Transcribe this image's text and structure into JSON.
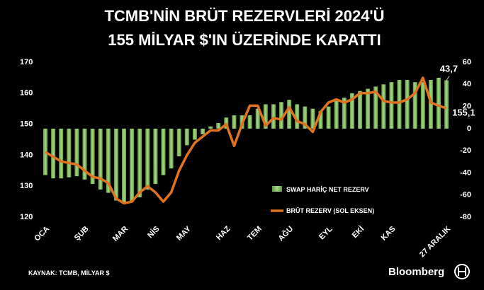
{
  "chart_data": {
    "type": "bar-line",
    "title": [
      "TCMB'NİN BRÜT REZERVLERİ 2024'Ü",
      "155 MİLYAR $'IN ÜZERİNDE KAPATTI"
    ],
    "source": "KAYNAK: TCMB, MİLYAR $",
    "brand": "Bloomberg",
    "categories": [
      "OCA",
      null,
      null,
      null,
      null,
      "ŞUB",
      null,
      null,
      null,
      null,
      "MAR",
      null,
      null,
      null,
      "NİS",
      null,
      null,
      null,
      "MAY",
      null,
      null,
      null,
      null,
      "HAZ",
      null,
      null,
      null,
      "TEM",
      null,
      null,
      null,
      "AĞU",
      null,
      null,
      null,
      null,
      "EYL",
      null,
      null,
      null,
      "EKİ",
      null,
      null,
      null,
      "KAS",
      null,
      null,
      null,
      null,
      null,
      null,
      "27 ARALIK"
    ],
    "series": [
      {
        "name": "SWAP HARİÇ NET REZERV",
        "color": "#5f9e3c",
        "axis": "y2",
        "values": [
          -42,
          -45,
          -45,
          -44,
          -43,
          -46,
          -50,
          -55,
          -58,
          -65,
          -68,
          -66,
          -62,
          -55,
          -50,
          -42,
          -36,
          -25,
          -15,
          -10,
          -5,
          2,
          5,
          10,
          12,
          12,
          12,
          18,
          22,
          22,
          24,
          26,
          22,
          20,
          18,
          16,
          20,
          25,
          28,
          32,
          34,
          36,
          38,
          40,
          42,
          44,
          44,
          42,
          42,
          44,
          46,
          43.7
        ],
        "value_labels": [
          null,
          null,
          null,
          null,
          null,
          null,
          null,
          null,
          null,
          null,
          null,
          null,
          null,
          null,
          null,
          null,
          null,
          null,
          null,
          null,
          null,
          null,
          null,
          null,
          null,
          null,
          null,
          null,
          null,
          null,
          null,
          null,
          null,
          null,
          null,
          null,
          null,
          null,
          null,
          null,
          null,
          null,
          null,
          null,
          null,
          null,
          null,
          null,
          null,
          null,
          null,
          "43,7"
        ]
      },
      {
        "name": "BRÜT REZERV (SOL EKSEN)",
        "color": "#e0731f",
        "axis": "y",
        "values": [
          141,
          139.5,
          138,
          137.5,
          137,
          135,
          133,
          132.5,
          131,
          126,
          124.5,
          125,
          128,
          130,
          128,
          125,
          128,
          135,
          140,
          144,
          146,
          148,
          148,
          150,
          143,
          150,
          156,
          156,
          149.5,
          152,
          151.5,
          155.5,
          151,
          150,
          147.5,
          154,
          157,
          158,
          157,
          158,
          160,
          160,
          160.5,
          157.5,
          157,
          157,
          158,
          160,
          165,
          157,
          156,
          155.1
        ],
        "value_labels": [
          null,
          null,
          null,
          null,
          null,
          null,
          null,
          null,
          null,
          null,
          null,
          null,
          null,
          null,
          null,
          null,
          null,
          null,
          null,
          null,
          null,
          null,
          null,
          null,
          null,
          null,
          null,
          null,
          null,
          null,
          null,
          null,
          null,
          null,
          null,
          null,
          null,
          null,
          null,
          null,
          null,
          null,
          null,
          null,
          null,
          null,
          null,
          null,
          null,
          null,
          null,
          "155,1"
        ]
      }
    ],
    "ylim": [
      120,
      170
    ],
    "yticks": [
      120,
      130,
      140,
      150,
      160,
      170
    ],
    "y2lim": [
      -80,
      60
    ],
    "y2ticks": [
      -80,
      -60,
      -40,
      -20,
      0,
      20,
      40,
      60
    ]
  }
}
